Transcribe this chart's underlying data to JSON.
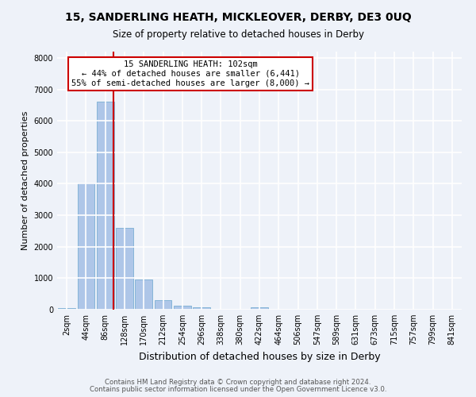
{
  "title": "15, SANDERLING HEATH, MICKLEOVER, DERBY, DE3 0UQ",
  "subtitle": "Size of property relative to detached houses in Derby",
  "xlabel": "Distribution of detached houses by size in Derby",
  "ylabel": "Number of detached properties",
  "bin_labels": [
    "2sqm",
    "44sqm",
    "86sqm",
    "128sqm",
    "170sqm",
    "212sqm",
    "254sqm",
    "296sqm",
    "338sqm",
    "380sqm",
    "422sqm",
    "464sqm",
    "506sqm",
    "547sqm",
    "589sqm",
    "631sqm",
    "673sqm",
    "715sqm",
    "757sqm",
    "799sqm",
    "841sqm"
  ],
  "bar_values": [
    50,
    4000,
    6600,
    2600,
    950,
    310,
    130,
    85,
    0,
    0,
    85,
    0,
    0,
    0,
    0,
    0,
    0,
    0,
    0,
    0,
    0
  ],
  "bar_color": "#aec6e8",
  "bar_edgecolor": "#7bafd4",
  "background_color": "#eef2f9",
  "grid_color": "#ffffff",
  "annotation_title": "15 SANDERLING HEATH: 102sqm",
  "annotation_line1": "← 44% of detached houses are smaller (6,441)",
  "annotation_line2": "55% of semi-detached houses are larger (8,000) →",
  "annotation_box_facecolor": "#ffffff",
  "annotation_box_edgecolor": "#cc0000",
  "red_line_color": "#cc0000",
  "ylim": [
    0,
    8200
  ],
  "yticks": [
    0,
    1000,
    2000,
    3000,
    4000,
    5000,
    6000,
    7000,
    8000
  ],
  "footer_line1": "Contains HM Land Registry data © Crown copyright and database right 2024.",
  "footer_line2": "Contains public sector information licensed under the Open Government Licence v3.0.",
  "title_fontsize": 10,
  "subtitle_fontsize": 8.5,
  "ylabel_fontsize": 8,
  "xlabel_fontsize": 9,
  "tick_fontsize": 7,
  "footer_fontsize": 6.2
}
